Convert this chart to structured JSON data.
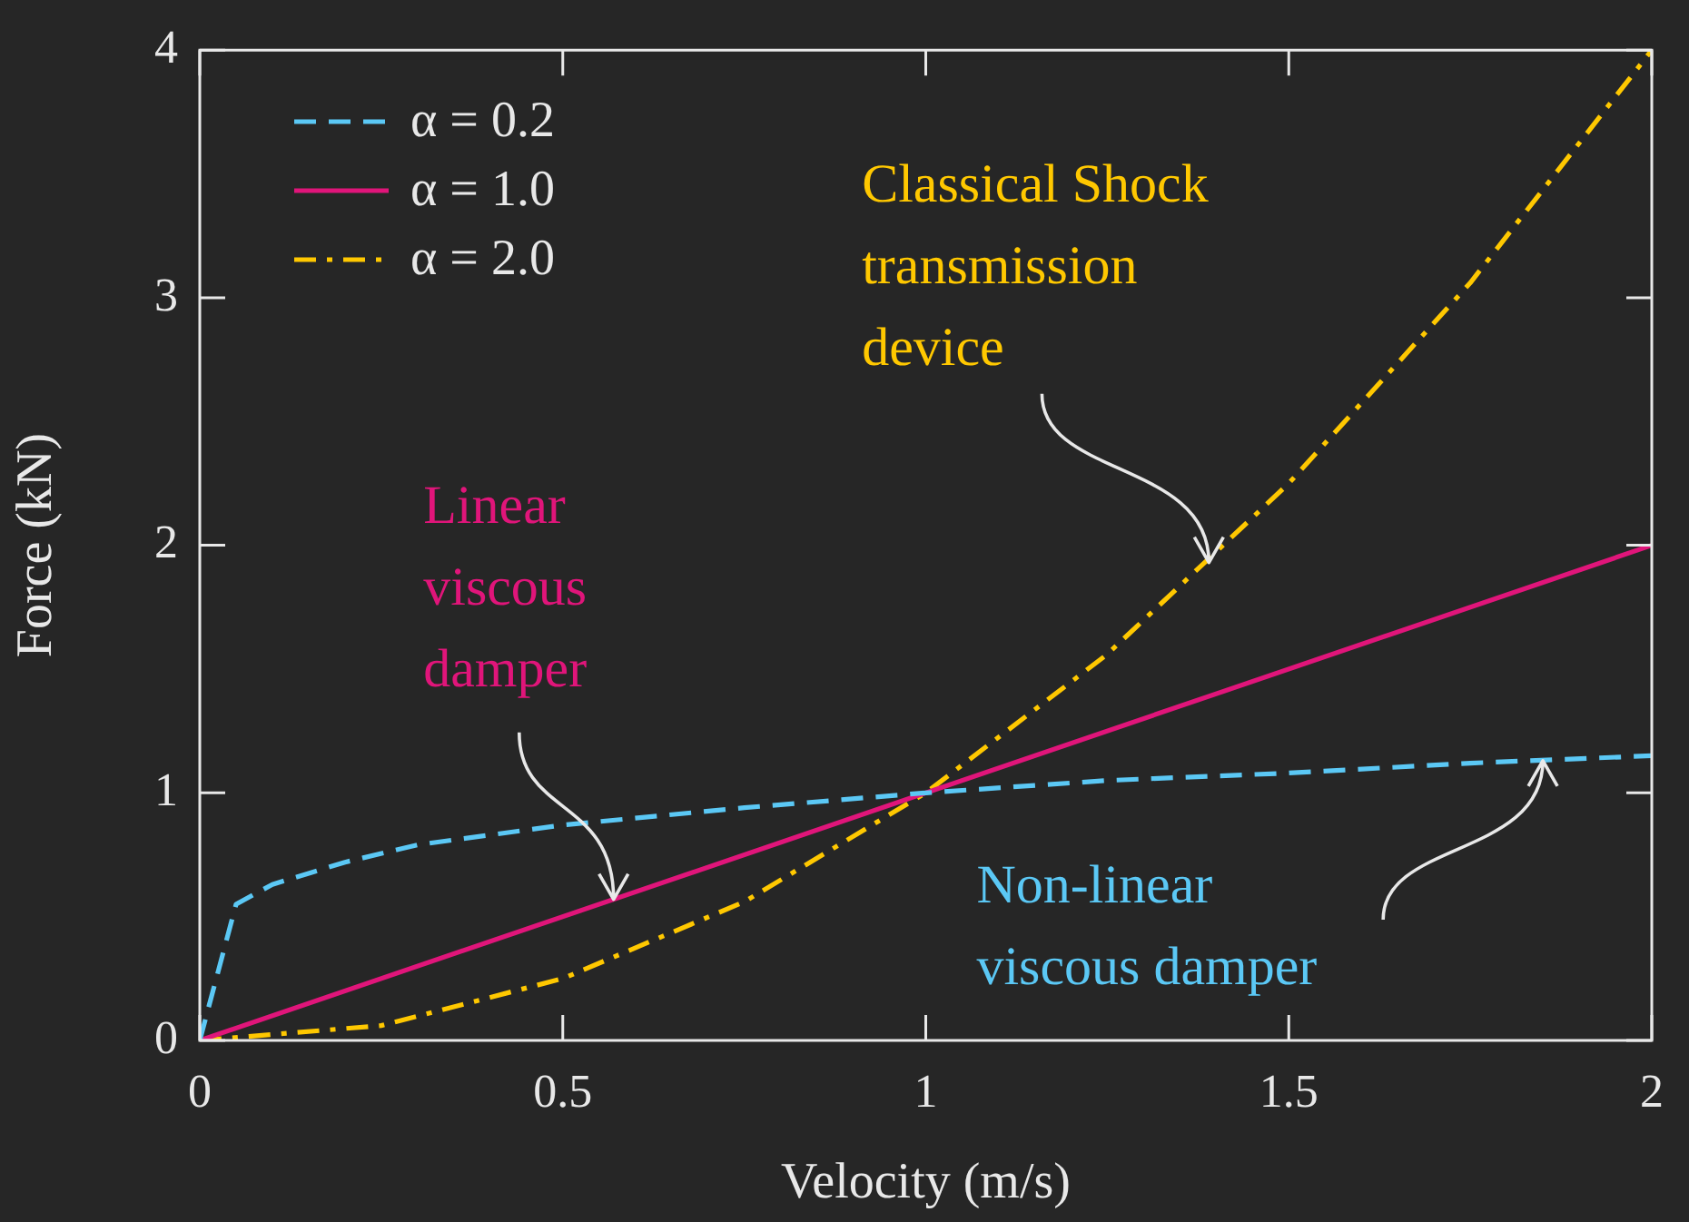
{
  "chart_data": {
    "type": "line",
    "xlabel": "Velocity (m/s)",
    "ylabel": "Force (kN)",
    "xlim": [
      0,
      2
    ],
    "xticks": [
      0,
      0.5,
      1,
      1.5,
      2
    ],
    "ylim": [
      0,
      4
    ],
    "yticks": [
      0,
      1,
      2,
      3,
      4
    ],
    "grid": false,
    "legend": "top left",
    "marker": "none",
    "series": [
      {
        "name": "α = 0.2",
        "color": "#5bc8f5",
        "line_style": "dashed",
        "x": [
          0,
          0.05,
          0.1,
          0.2,
          0.3,
          0.5,
          0.75,
          1,
          1.25,
          1.5,
          1.75,
          2
        ],
        "values": [
          0,
          0.55,
          0.63,
          0.72,
          0.79,
          0.87,
          0.94,
          1,
          1.05,
          1.08,
          1.12,
          1.15
        ]
      },
      {
        "name": "α = 1.0",
        "color": "#e0157a",
        "line_style": "solid",
        "x": [
          0,
          2
        ],
        "values": [
          0,
          2
        ]
      },
      {
        "name": "α = 2.0",
        "color": "#ffc800",
        "line_style": "dashdot",
        "x": [
          0,
          0.25,
          0.5,
          0.75,
          1,
          1.25,
          1.5,
          1.75,
          2
        ],
        "values": [
          0,
          0.06,
          0.25,
          0.56,
          1,
          1.56,
          2.25,
          3.06,
          4
        ]
      }
    ],
    "annotations": [
      {
        "text": "Linear\nviscous\ndamper",
        "x": 0.57,
        "y": 0.57
      },
      {
        "text": "Classical Shock\ntransmission\ndevice",
        "x": 1.39,
        "y": 1.93
      },
      {
        "text": "Non-linear\nviscous damper",
        "x": 1.85,
        "y": 1.13
      }
    ]
  }
}
